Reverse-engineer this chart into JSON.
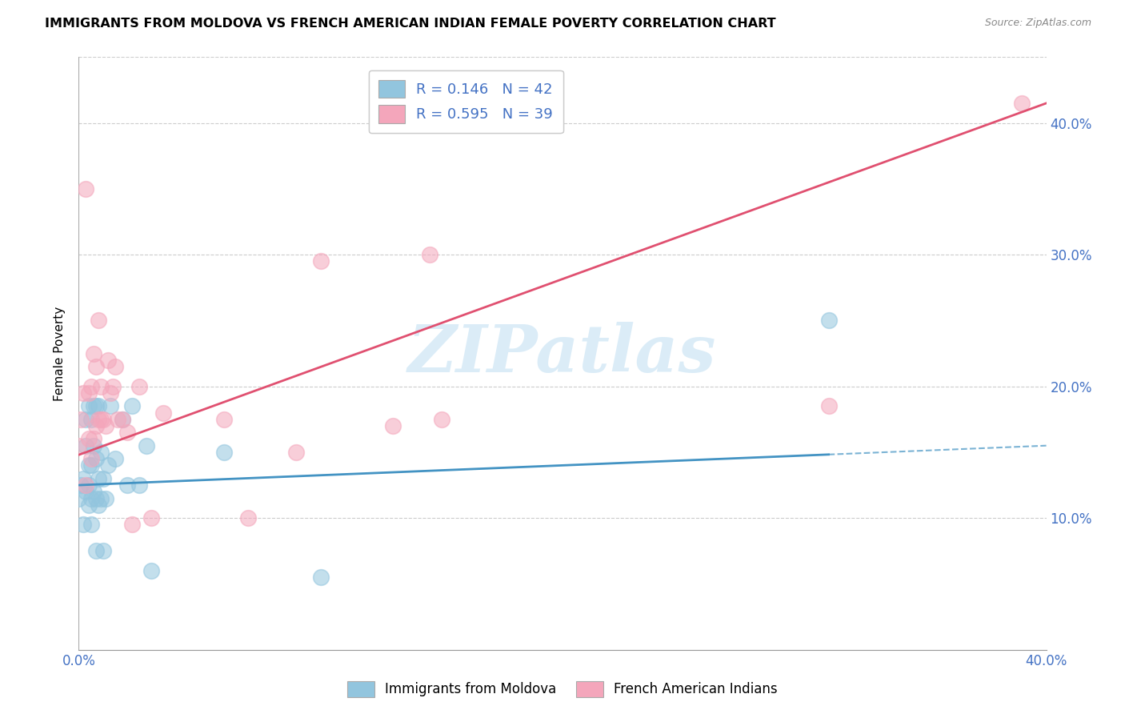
{
  "title": "IMMIGRANTS FROM MOLDOVA VS FRENCH AMERICAN INDIAN FEMALE POVERTY CORRELATION CHART",
  "source": "Source: ZipAtlas.com",
  "ylabel": "Female Poverty",
  "xlim": [
    0.0,
    0.4
  ],
  "ylim": [
    0.0,
    0.45
  ],
  "xtick_labels": [
    "0.0%",
    "",
    "",
    "",
    "40.0%"
  ],
  "xtick_vals": [
    0.0,
    0.1,
    0.2,
    0.3,
    0.4
  ],
  "ytick_labels": [
    "10.0%",
    "20.0%",
    "30.0%",
    "40.0%"
  ],
  "ytick_vals": [
    0.1,
    0.2,
    0.3,
    0.4
  ],
  "legend_label1": "R = 0.146   N = 42",
  "legend_label2": "R = 0.595   N = 39",
  "legend_label_bottom1": "Immigrants from Moldova",
  "legend_label_bottom2": "French American Indians",
  "color_blue": "#92c5de",
  "color_pink": "#f4a6bb",
  "color_line_blue": "#4393c3",
  "color_line_pink": "#d6604d",
  "watermark_text": "ZIPatlas",
  "moldova_x": [
    0.0,
    0.001,
    0.002,
    0.002,
    0.003,
    0.003,
    0.003,
    0.004,
    0.004,
    0.004,
    0.004,
    0.005,
    0.005,
    0.005,
    0.005,
    0.006,
    0.006,
    0.006,
    0.007,
    0.007,
    0.007,
    0.007,
    0.008,
    0.008,
    0.008,
    0.009,
    0.009,
    0.01,
    0.01,
    0.011,
    0.012,
    0.013,
    0.015,
    0.018,
    0.02,
    0.022,
    0.025,
    0.028,
    0.03,
    0.06,
    0.1,
    0.31
  ],
  "moldova_y": [
    0.115,
    0.125,
    0.095,
    0.13,
    0.12,
    0.155,
    0.175,
    0.11,
    0.125,
    0.14,
    0.185,
    0.095,
    0.115,
    0.14,
    0.175,
    0.12,
    0.155,
    0.185,
    0.075,
    0.115,
    0.145,
    0.185,
    0.11,
    0.13,
    0.185,
    0.115,
    0.15,
    0.075,
    0.13,
    0.115,
    0.14,
    0.185,
    0.145,
    0.175,
    0.125,
    0.185,
    0.125,
    0.155,
    0.06,
    0.15,
    0.055,
    0.25
  ],
  "french_x": [
    0.0,
    0.001,
    0.002,
    0.003,
    0.003,
    0.004,
    0.004,
    0.005,
    0.005,
    0.006,
    0.006,
    0.007,
    0.007,
    0.008,
    0.008,
    0.009,
    0.009,
    0.01,
    0.011,
    0.012,
    0.013,
    0.014,
    0.015,
    0.016,
    0.018,
    0.02,
    0.022,
    0.025,
    0.03,
    0.035,
    0.06,
    0.07,
    0.09,
    0.1,
    0.13,
    0.145,
    0.15,
    0.31,
    0.39
  ],
  "french_y": [
    0.155,
    0.175,
    0.195,
    0.125,
    0.35,
    0.16,
    0.195,
    0.145,
    0.2,
    0.16,
    0.225,
    0.17,
    0.215,
    0.175,
    0.25,
    0.175,
    0.2,
    0.175,
    0.17,
    0.22,
    0.195,
    0.2,
    0.215,
    0.175,
    0.175,
    0.165,
    0.095,
    0.2,
    0.1,
    0.18,
    0.175,
    0.1,
    0.15,
    0.295,
    0.17,
    0.3,
    0.175,
    0.185,
    0.415
  ],
  "line_blue_x0": 0.0,
  "line_blue_y0": 0.125,
  "line_blue_x1": 0.4,
  "line_blue_y1": 0.155,
  "line_pink_x0": 0.0,
  "line_pink_y0": 0.148,
  "line_pink_x1": 0.4,
  "line_pink_y1": 0.415
}
